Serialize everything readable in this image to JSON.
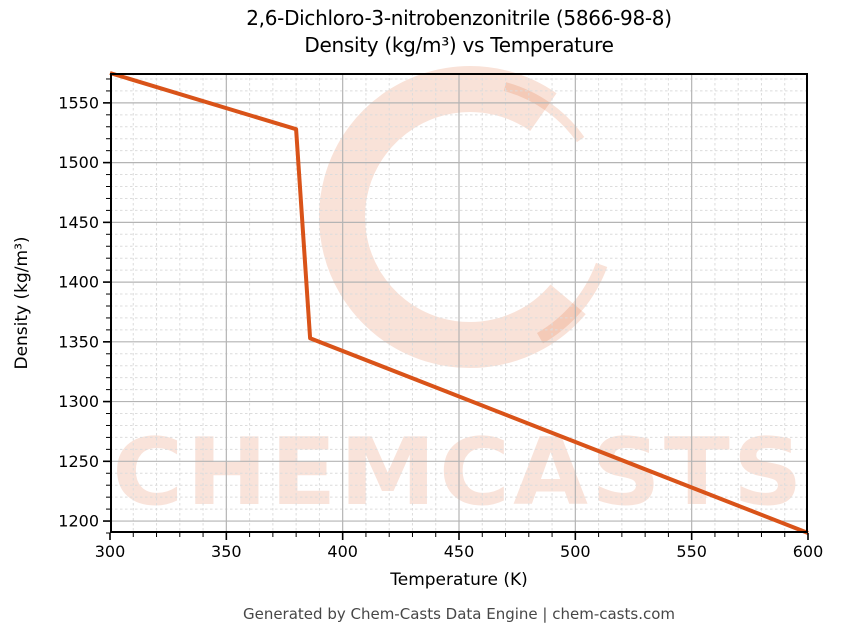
{
  "figure": {
    "title_line1": "2,6-Dichloro-3-nitrobenzonitrile (5866-98-8)",
    "title_line2": "Density (kg/m³) vs Temperature",
    "footer": "Generated by Chem-Casts Data Engine | chem-casts.com"
  },
  "watermark": {
    "text": "CHEMCASTS",
    "logo_icon": "chemcasts-c-swirl-logo",
    "brand_color": "#d95319",
    "text_opacity": 0.16,
    "logo_opacity": 0.17
  },
  "chart_data": {
    "type": "line",
    "title": "2,6-Dichloro-3-nitrobenzonitrile (5866-98-8)",
    "subtitle": "Density (kg/m³) vs Temperature",
    "xlabel": "Temperature (K)",
    "ylabel": "Density (kg/m³)",
    "xlim": [
      300,
      600
    ],
    "ylim": [
      1190,
      1575
    ],
    "x_major_ticks": [
      300,
      350,
      400,
      450,
      500,
      550,
      600
    ],
    "y_major_ticks": [
      1200,
      1250,
      1300,
      1350,
      1400,
      1450,
      1500,
      1550
    ],
    "x_minor_step": 10,
    "y_minor_step": 10,
    "grid": {
      "major": "solid",
      "minor": "dashed"
    },
    "legend": "none",
    "series": [
      {
        "name": "Density",
        "color": "#d95319",
        "line_width": 4,
        "points": [
          [
            300,
            1575
          ],
          [
            380,
            1528
          ],
          [
            386,
            1353
          ],
          [
            600,
            1190
          ]
        ]
      }
    ]
  }
}
